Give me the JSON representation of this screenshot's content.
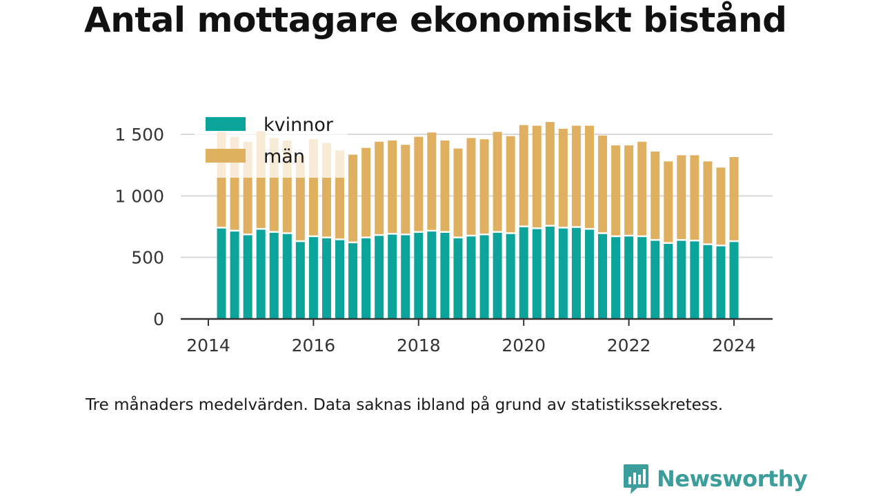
{
  "title": "Antal mottagare ekonomiskt bistånd",
  "note": "Tre månaders medelvärden. Data saknas ibland på grund av statistikssekretess.",
  "brand": {
    "name": "Newsworthy",
    "color": "#3b9e9a"
  },
  "chart_data": {
    "type": "bar",
    "stacked": true,
    "title": "Antal mottagare ekonomiskt bistånd",
    "xlabel": "",
    "ylabel": "",
    "ylim": [
      0,
      1600
    ],
    "y_ticks": [
      0,
      500,
      1000,
      1500
    ],
    "y_tick_labels": [
      "0",
      "500",
      "1 000",
      "1 500"
    ],
    "x_ticks": [
      2014,
      2016,
      2018,
      2020,
      2022,
      2024
    ],
    "x_tick_labels": [
      "2014",
      "2016",
      "2018",
      "2020",
      "2022",
      "2024"
    ],
    "grid": true,
    "legend_position": "top-left",
    "x": [
      2014.25,
      2014.5,
      2014.75,
      2015.0,
      2015.25,
      2015.5,
      2015.75,
      2016.0,
      2016.25,
      2016.5,
      2016.75,
      2017.0,
      2017.25,
      2017.5,
      2017.75,
      2018.0,
      2018.25,
      2018.5,
      2018.75,
      2019.0,
      2019.25,
      2019.5,
      2019.75,
      2020.0,
      2020.25,
      2020.5,
      2020.75,
      2021.0,
      2021.25,
      2021.5,
      2021.75,
      2022.0,
      2022.25,
      2022.5,
      2022.75,
      2023.0,
      2023.25,
      2023.5,
      2023.75,
      2024.0
    ],
    "series": [
      {
        "name": "kvinnor",
        "color": "#0ba39a",
        "values": [
          735,
          710,
          680,
          725,
          700,
          690,
          625,
          665,
          655,
          640,
          615,
          655,
          675,
          685,
          680,
          700,
          710,
          700,
          655,
          670,
          680,
          700,
          690,
          745,
          730,
          750,
          735,
          740,
          725,
          690,
          665,
          670,
          665,
          635,
          610,
          635,
          630,
          600,
          590,
          625
        ]
      },
      {
        "name": "män",
        "color": "#dfb05f",
        "values": [
          785,
          770,
          760,
          800,
          770,
          760,
          700,
          795,
          775,
          730,
          720,
          735,
          765,
          765,
          735,
          780,
          805,
          750,
          730,
          800,
          780,
          820,
          795,
          830,
          840,
          850,
          810,
          830,
          845,
          800,
          745,
          740,
          775,
          725,
          670,
          695,
          700,
          680,
          640,
          690
        ]
      }
    ]
  }
}
